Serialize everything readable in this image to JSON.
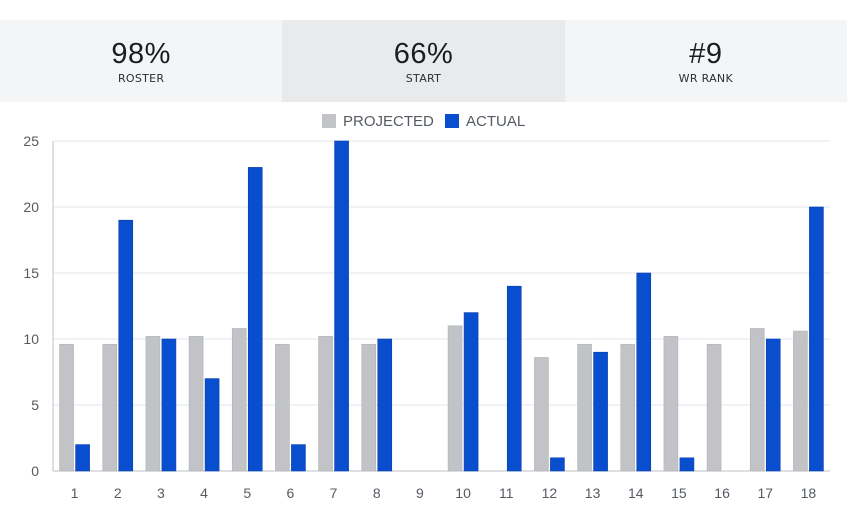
{
  "stats": [
    {
      "value": "98%",
      "label": "ROSTER"
    },
    {
      "value": "66%",
      "label": "START"
    },
    {
      "value": "#9",
      "label": "WR RANK"
    }
  ],
  "colors": {
    "projected": "#c2c3c6",
    "actual": "#0a4ed0"
  },
  "chart_data": {
    "type": "bar",
    "title": "",
    "xlabel": "",
    "ylabel": "",
    "ylim": [
      0,
      25
    ],
    "yticks": [
      0,
      5,
      10,
      15,
      20,
      25
    ],
    "grid": true,
    "legend": "top-center",
    "categories": [
      "1",
      "2",
      "3",
      "4",
      "5",
      "6",
      "7",
      "8",
      "9",
      "10",
      "11",
      "12",
      "13",
      "14",
      "15",
      "16",
      "17",
      "18"
    ],
    "series": [
      {
        "name": "PROJECTED",
        "values": [
          9.6,
          9.6,
          10.2,
          10.2,
          10.8,
          9.6,
          10.2,
          9.6,
          null,
          11.0,
          null,
          8.6,
          9.6,
          9.6,
          10.2,
          9.6,
          10.8,
          10.6
        ]
      },
      {
        "name": "ACTUAL",
        "values": [
          2,
          19,
          10,
          7,
          23,
          2,
          25,
          10,
          null,
          12,
          14,
          1,
          9,
          15,
          1,
          null,
          10,
          20
        ]
      }
    ]
  }
}
